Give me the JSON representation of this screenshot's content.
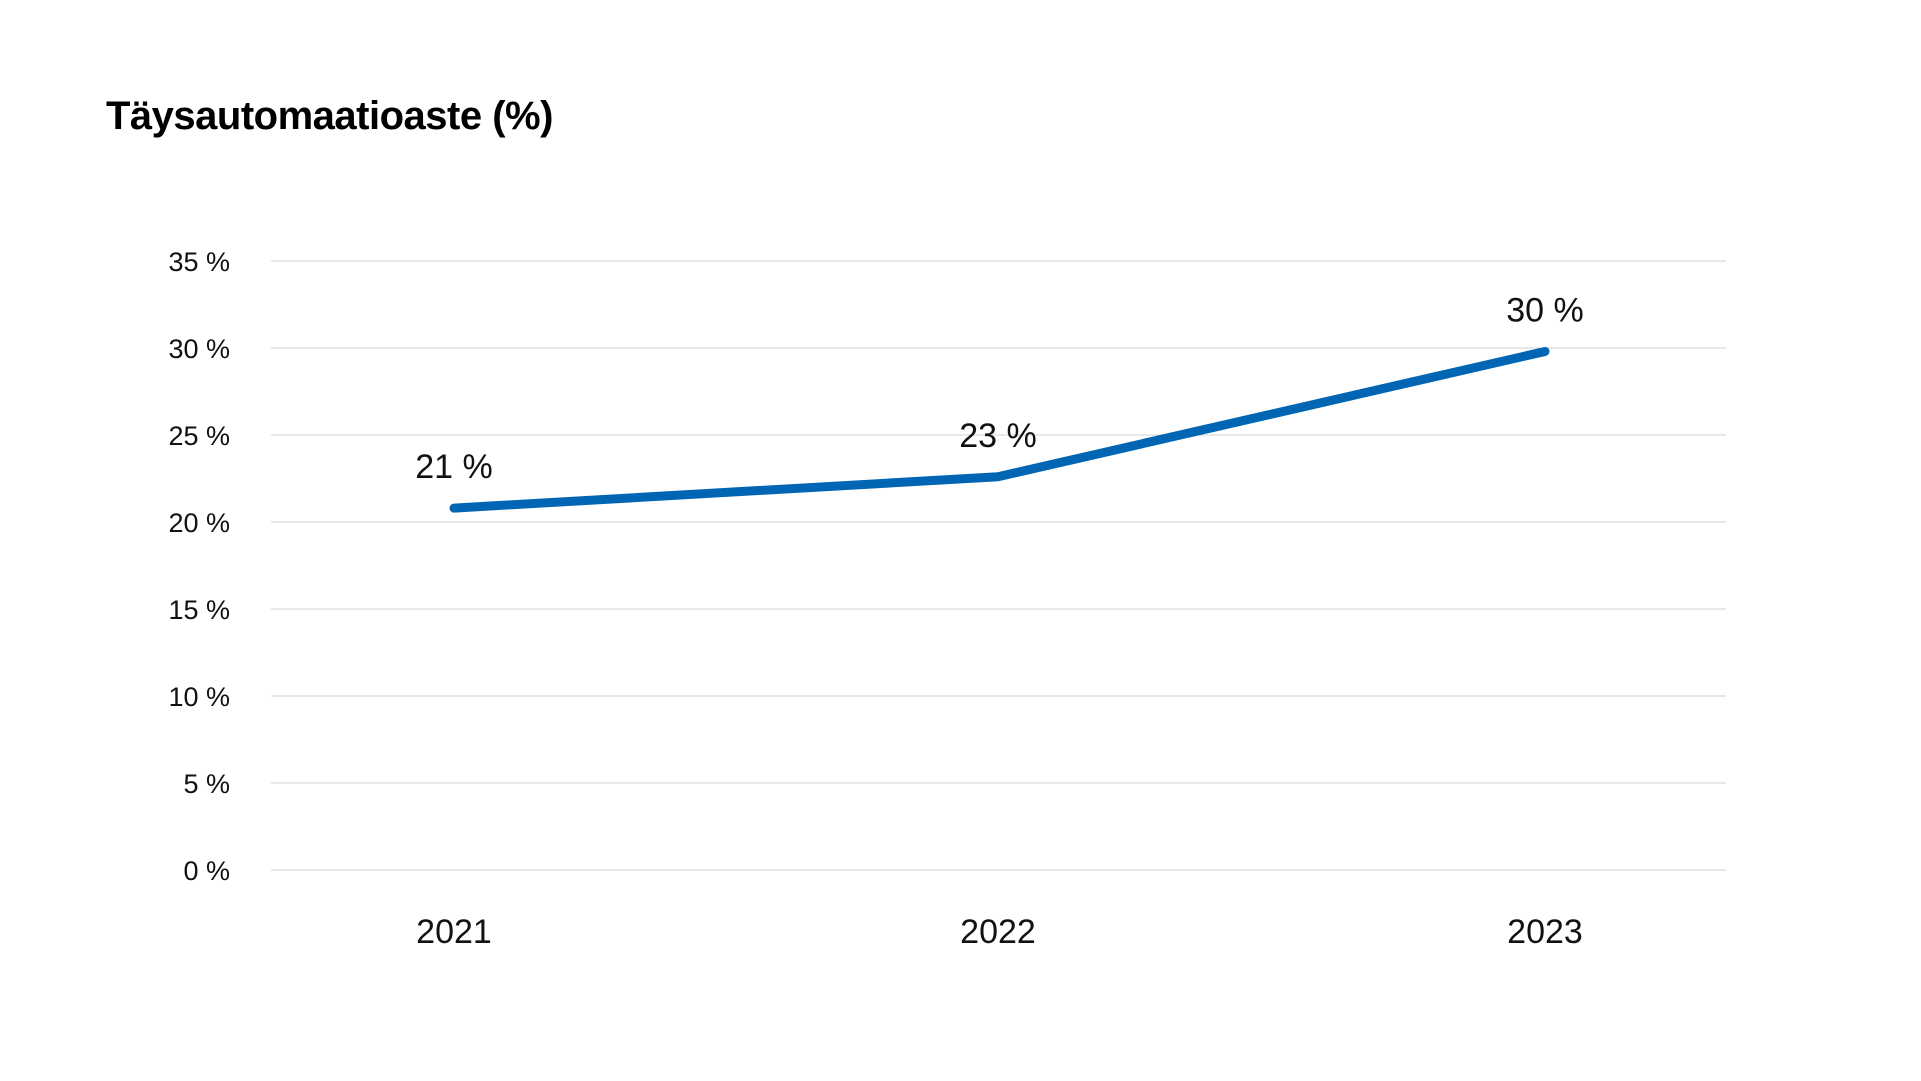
{
  "chart_data": {
    "type": "line",
    "title": "Täysautomaatioaste (%)",
    "xlabel": "",
    "ylabel": "",
    "categories": [
      "2021",
      "2022",
      "2023"
    ],
    "series": [
      {
        "name": "Täysautomaatioaste",
        "values": [
          20.8,
          22.6,
          29.8
        ],
        "labels": [
          "21 %",
          "23 %",
          "30 %"
        ],
        "color": "#0066b3"
      }
    ],
    "ylim": [
      0,
      35
    ],
    "yticks": [
      0,
      5,
      10,
      15,
      20,
      25,
      30,
      35
    ],
    "ytick_labels": [
      "0 %",
      "5 %",
      "10 %",
      "15 %",
      "20 %",
      "25 %",
      "30 %",
      "35 %"
    ],
    "grid": true,
    "grid_color": "#d9d9d9"
  }
}
